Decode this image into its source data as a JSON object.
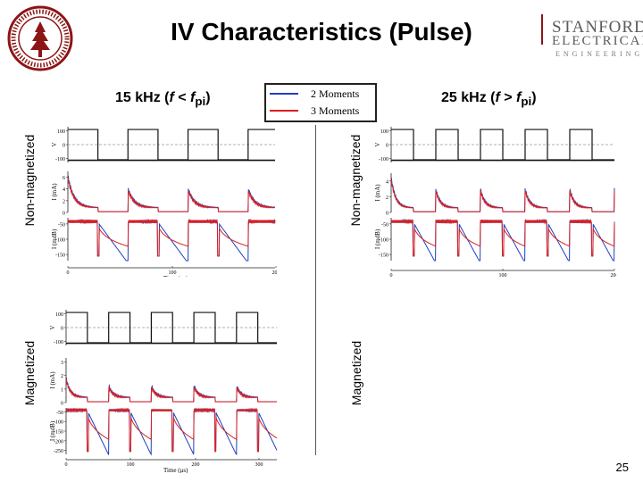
{
  "title": "IV Characteristics (Pulse)",
  "logo": {
    "line1": "STANFORD",
    "line2": "ELECTRICAL",
    "line3": "ENGINEERING"
  },
  "seal": {
    "text": "LELAND STANFORD JUNIOR UNIVERSITY"
  },
  "left_heading": {
    "prefix": "15 kHz (",
    "f": "f",
    "lt": " < ",
    "fp": "f",
    "sub": "pi",
    "close": ")"
  },
  "right_heading": {
    "prefix": "25 kHz (",
    "f": "f",
    "gt": " > ",
    "fp": "f",
    "sub": "pi",
    "close": ")"
  },
  "legend": [
    {
      "label": "2 Moments",
      "color": "#1f3fbf"
    },
    {
      "label": "3 Moments",
      "color": "#d92020"
    }
  ],
  "row_labels": {
    "left_top": "Non-magnetized",
    "left_bottom": "Magnetized",
    "right_top": "Non-magnetized",
    "right_bottom": "Magnetized"
  },
  "page_number": "25",
  "chart_data": [
    {
      "type": "line",
      "panel": "15 kHz non-magnetized",
      "xlabel": "Time (μs)",
      "x_ticks": [
        "0",
        "100",
        "200"
      ],
      "xlim": [
        0,
        230
      ],
      "subplots": [
        {
          "ylabel": "V",
          "ticks": [
            "100",
            "0",
            "-100"
          ],
          "ylim": [
            -130,
            130
          ]
        },
        {
          "ylabel": "I (mA)",
          "ticks": [
            "6",
            "4",
            "2",
            "0"
          ],
          "ylim": [
            0,
            7
          ]
        },
        {
          "ylabel": "I (mdB)",
          "ticks": [
            "-50",
            "-100",
            "-150"
          ],
          "ylim": [
            -170,
            -30
          ]
        }
      ],
      "period_us": 66.7,
      "series": [
        {
          "name": "2 Moments"
        },
        {
          "name": "3 Moments"
        }
      ]
    },
    {
      "type": "line",
      "panel": "25 kHz non-magnetized",
      "xlabel": "Time (μs)",
      "x_ticks": [
        "0",
        "100",
        "200"
      ],
      "xlim": [
        0,
        200
      ],
      "subplots": [
        {
          "ylabel": "V",
          "ticks": [
            "100",
            "0",
            "-100"
          ],
          "ylim": [
            -130,
            130
          ]
        },
        {
          "ylabel": "I (mA)",
          "ticks": [
            "4",
            "2",
            "0"
          ],
          "ylim": [
            0,
            5
          ]
        },
        {
          "ylabel": "I (mdB)",
          "ticks": [
            "-50",
            "-100",
            "-150"
          ],
          "ylim": [
            -170,
            -30
          ]
        }
      ],
      "period_us": 40,
      "series": [
        {
          "name": "2 Moments"
        },
        {
          "name": "3 Moments"
        }
      ]
    },
    {
      "type": "line",
      "panel": "15 kHz magnetized",
      "xlabel": "Time (μs)",
      "x_ticks": [
        "0",
        "100",
        "200",
        "300"
      ],
      "xlim": [
        0,
        330
      ],
      "subplots": [
        {
          "ylabel": "V",
          "ticks": [
            "100",
            "0",
            "-100"
          ],
          "ylim": [
            -130,
            130
          ]
        },
        {
          "ylabel": "I (mA)",
          "ticks": [
            "3",
            "2",
            "1",
            "0"
          ],
          "ylim": [
            0,
            3.3
          ]
        },
        {
          "ylabel": "I (mdB)",
          "ticks": [
            "-50",
            "-100",
            "-150",
            "-200",
            "-250"
          ],
          "ylim": [
            -270,
            -30
          ]
        }
      ],
      "period_us": 66.7,
      "series": [
        {
          "name": "2 Moments"
        },
        {
          "name": "3 Moments"
        }
      ]
    }
  ]
}
